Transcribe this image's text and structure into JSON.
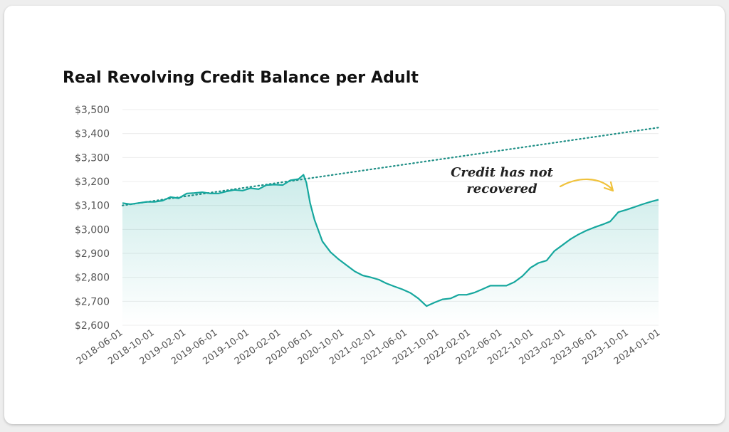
{
  "colors": {
    "line": "#16a79e",
    "area": "#16a79e",
    "trend": "#1f8f86",
    "annotation_arrow": "#f0c23c",
    "grid": "#ececec"
  },
  "chart_data": {
    "type": "line",
    "title": "Real Revolving Credit Balance per Adult",
    "xlabel": "",
    "ylabel": "",
    "ylim": [
      2600,
      3500
    ],
    "xlim": [
      "2018-06-01",
      "2024-01-01"
    ],
    "y_ticks": [
      2600,
      2700,
      2800,
      2900,
      3000,
      3100,
      3200,
      3300,
      3400,
      3500
    ],
    "y_tick_labels": [
      "$2,600",
      "$2,700",
      "$2,800",
      "$2,900",
      "$3,000",
      "$3,100",
      "$3,200",
      "$3,300",
      "$3,400",
      "$3,500"
    ],
    "x_tick_labels": [
      "2018-06-01",
      "2018-10-01",
      "2019-02-01",
      "2019-06-01",
      "2019-10-01",
      "2020-02-01",
      "2020-06-01",
      "2020-10-01",
      "2021-02-01",
      "2021-06-01",
      "2021-10-01",
      "2022-02-01",
      "2022-06-01",
      "2022-10-01",
      "2023-02-01",
      "2023-06-01",
      "2023-10-01",
      "2024-01-01"
    ],
    "grid": true,
    "series": [
      {
        "style": "solid area",
        "points": [
          [
            "2018-06-01",
            3110
          ],
          [
            "2018-07-01",
            3105
          ],
          [
            "2018-08-01",
            3110
          ],
          [
            "2018-09-01",
            3115
          ],
          [
            "2018-10-01",
            3115
          ],
          [
            "2018-11-01",
            3120
          ],
          [
            "2018-12-01",
            3135
          ],
          [
            "2019-01-01",
            3130
          ],
          [
            "2019-02-01",
            3150
          ],
          [
            "2019-03-01",
            3152
          ],
          [
            "2019-04-01",
            3155
          ],
          [
            "2019-05-01",
            3150
          ],
          [
            "2019-06-01",
            3150
          ],
          [
            "2019-07-01",
            3158
          ],
          [
            "2019-08-01",
            3165
          ],
          [
            "2019-09-01",
            3162
          ],
          [
            "2019-10-01",
            3172
          ],
          [
            "2019-11-01",
            3168
          ],
          [
            "2019-12-01",
            3185
          ],
          [
            "2020-01-01",
            3187
          ],
          [
            "2020-02-01",
            3185
          ],
          [
            "2020-03-01",
            3205
          ],
          [
            "2020-04-01",
            3210
          ],
          [
            "2020-04-20",
            3228
          ],
          [
            "2020-05-01",
            3195
          ],
          [
            "2020-05-15",
            3110
          ],
          [
            "2020-06-01",
            3040
          ],
          [
            "2020-07-01",
            2950
          ],
          [
            "2020-08-01",
            2905
          ],
          [
            "2020-09-01",
            2875
          ],
          [
            "2020-10-01",
            2850
          ],
          [
            "2020-11-01",
            2825
          ],
          [
            "2020-12-01",
            2808
          ],
          [
            "2021-01-01",
            2800
          ],
          [
            "2021-02-01",
            2790
          ],
          [
            "2021-03-01",
            2775
          ],
          [
            "2021-04-01",
            2762
          ],
          [
            "2021-05-01",
            2750
          ],
          [
            "2021-06-01",
            2735
          ],
          [
            "2021-07-01",
            2712
          ],
          [
            "2021-08-01",
            2680
          ],
          [
            "2021-09-01",
            2695
          ],
          [
            "2021-10-01",
            2708
          ],
          [
            "2021-11-01",
            2712
          ],
          [
            "2021-12-01",
            2727
          ],
          [
            "2022-01-01",
            2727
          ],
          [
            "2022-02-01",
            2737
          ],
          [
            "2022-03-01",
            2750
          ],
          [
            "2022-04-01",
            2765
          ],
          [
            "2022-05-01",
            2765
          ],
          [
            "2022-06-01",
            2765
          ],
          [
            "2022-07-01",
            2780
          ],
          [
            "2022-08-01",
            2805
          ],
          [
            "2022-09-01",
            2840
          ],
          [
            "2022-10-01",
            2860
          ],
          [
            "2022-11-01",
            2870
          ],
          [
            "2022-12-01",
            2910
          ],
          [
            "2023-01-01",
            2935
          ],
          [
            "2023-02-01",
            2960
          ],
          [
            "2023-03-01",
            2978
          ],
          [
            "2023-04-01",
            2995
          ],
          [
            "2023-05-01",
            3008
          ],
          [
            "2023-06-01",
            3020
          ],
          [
            "2023-07-01",
            3033
          ],
          [
            "2023-08-01",
            3072
          ],
          [
            "2023-09-01",
            3082
          ],
          [
            "2023-10-01",
            3093
          ],
          [
            "2023-11-01",
            3105
          ],
          [
            "2023-12-01",
            3115
          ],
          [
            "2024-01-01",
            3124
          ]
        ]
      },
      {
        "style": "dotted trend",
        "points": [
          [
            "2018-06-01",
            3100
          ],
          [
            "2024-01-01",
            3425
          ]
        ]
      }
    ],
    "annotations": [
      {
        "text_lines": [
          "Credit has not",
          "recovered"
        ],
        "points_to": [
          "2023-11-01",
          3115
        ]
      }
    ]
  }
}
